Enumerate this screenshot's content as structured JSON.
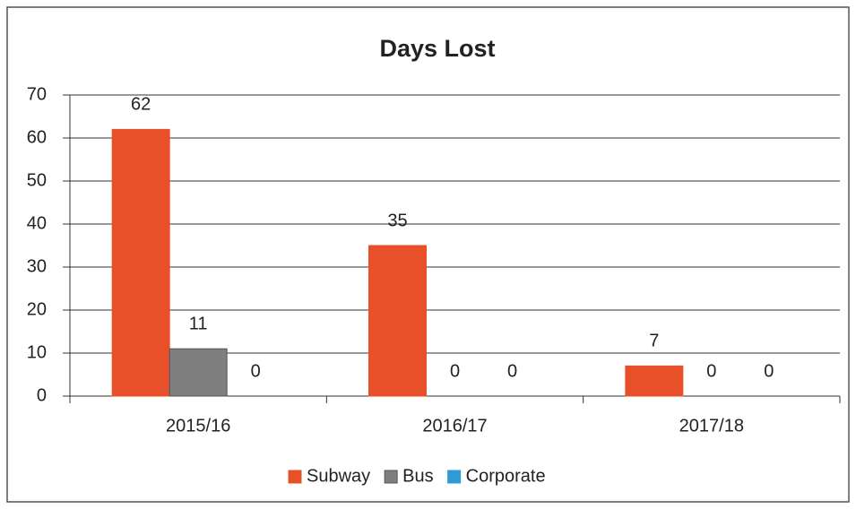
{
  "chart_data": {
    "type": "bar",
    "title": "Days Lost",
    "categories": [
      "2015/16",
      "2016/17",
      "2017/18"
    ],
    "series": [
      {
        "name": "Subway",
        "color": "#e8502a",
        "values": [
          62,
          35,
          7
        ]
      },
      {
        "name": "Bus",
        "color": "#7f7f7f",
        "values": [
          11,
          0,
          0
        ]
      },
      {
        "name": "Corporate",
        "color": "#2e9bd6",
        "values": [
          0,
          0,
          0
        ]
      }
    ],
    "ylim": [
      0,
      70
    ],
    "yticks": [
      0,
      10,
      20,
      30,
      40,
      50,
      60,
      70
    ],
    "grid": true,
    "legend": "bottom"
  }
}
